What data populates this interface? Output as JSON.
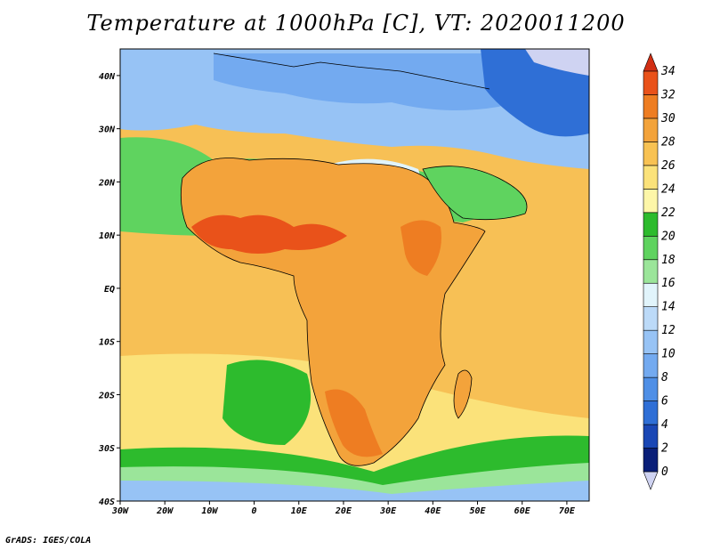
{
  "title": "Temperature at 1000hPa [C], VT: 2020011200",
  "footer": "GrADS: IGES/COLA",
  "map": {
    "lon_range": [
      -30,
      75
    ],
    "lat_range": [
      -40,
      45
    ],
    "lon_ticks": [
      "30W",
      "20W",
      "10W",
      "0",
      "10E",
      "20E",
      "30E",
      "40E",
      "50E",
      "60E",
      "70E"
    ],
    "lon_values": [
      -30,
      -20,
      -10,
      0,
      10,
      20,
      30,
      40,
      50,
      60,
      70
    ],
    "lat_ticks": [
      "40S",
      "30S",
      "20S",
      "10S",
      "EQ",
      "10N",
      "20N",
      "30N",
      "40N"
    ],
    "lat_values": [
      -40,
      -30,
      -20,
      -10,
      0,
      10,
      20,
      30,
      40
    ]
  },
  "colorbar": {
    "labels": [
      "0",
      "2",
      "4",
      "6",
      "8",
      "10",
      "12",
      "14",
      "16",
      "18",
      "20",
      "22",
      "24",
      "26",
      "28",
      "30",
      "32",
      "34"
    ],
    "colors": [
      "#cfd3f2",
      "#0a1f78",
      "#1a47b5",
      "#2f6fd6",
      "#4f8fe6",
      "#73aaf0",
      "#97c3f5",
      "#bcdaf8",
      "#e1f4fb",
      "#9be59a",
      "#5fd35f",
      "#2dbb2d",
      "#fdf6a8",
      "#fbe27a",
      "#f8c253",
      "#f3a33b",
      "#ee7d22",
      "#e9521a",
      "#d12f14"
    ],
    "units_note": "C"
  },
  "field_colors": {
    "sea_mid": "#f7c055",
    "sea_warm": "#f3a33b",
    "sea_pale": "#fbe27a",
    "north_ocean": "#5fd35f",
    "south_green": "#2dbb2d",
    "south_pale": "#97c3f5",
    "deep_south": "#73aaf0",
    "hot": "#e9521a",
    "hot2": "#ee7d22",
    "sahara": "#bcdaf8",
    "med": "#73aaf0",
    "asia_cold": "#2f6fd6",
    "snow": "#cfd3f2",
    "land_outline": "#000000"
  }
}
